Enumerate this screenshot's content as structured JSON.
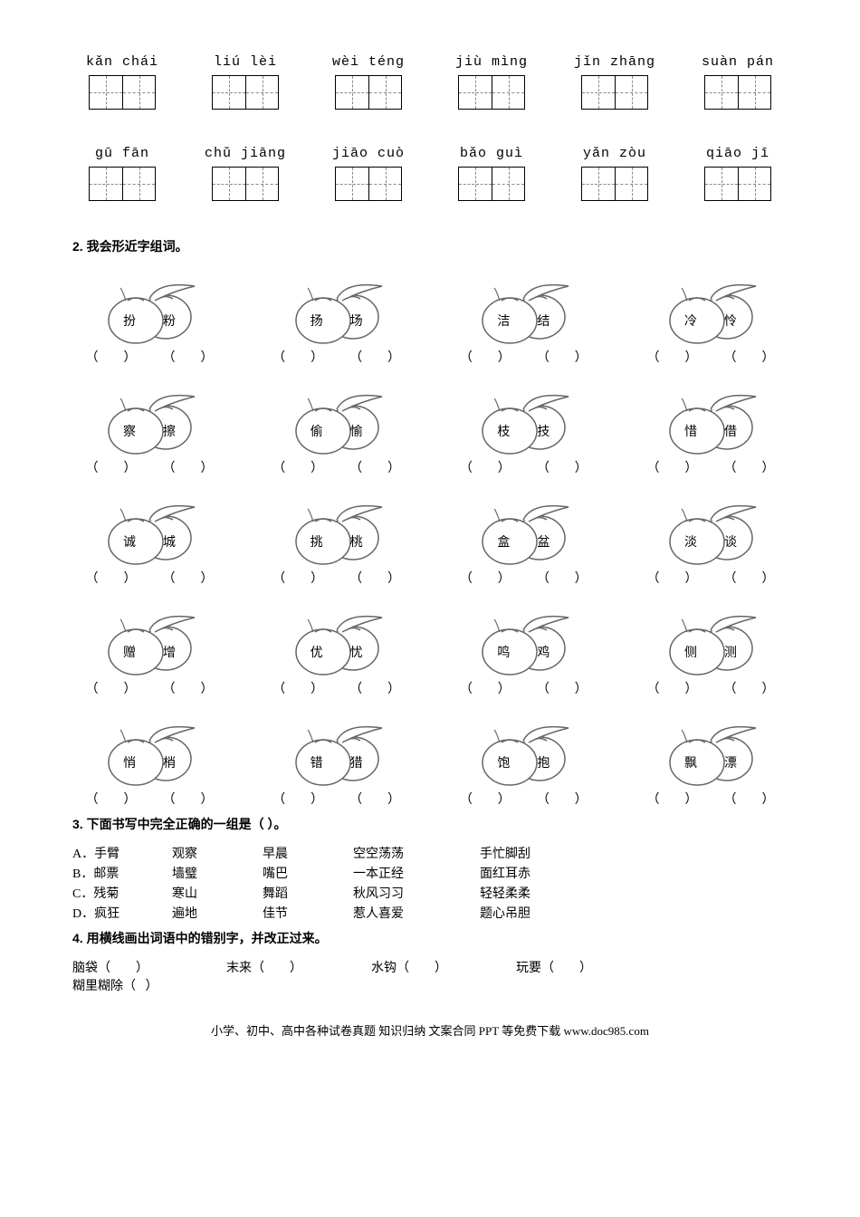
{
  "pinyin_rows": [
    [
      {
        "pinyin": "kǎn chái"
      },
      {
        "pinyin": "liú lèi"
      },
      {
        "pinyin": "wèi téng"
      },
      {
        "pinyin": "jiù  mìng"
      },
      {
        "pinyin": "jǐn zhāng"
      },
      {
        "pinyin": "suàn pán"
      }
    ],
    [
      {
        "pinyin": "gū fān"
      },
      {
        "pinyin": "chǔ jiāng"
      },
      {
        "pinyin": "jiāo cuò"
      },
      {
        "pinyin": "bǎo  guì"
      },
      {
        "pinyin": "yǎn zòu"
      },
      {
        "pinyin": "qiāo  jī"
      }
    ]
  ],
  "q2": {
    "heading": "2. 我会形近字组词。",
    "rows": [
      [
        [
          "扮",
          "粉"
        ],
        [
          "扬",
          "场"
        ],
        [
          "洁",
          "结"
        ],
        [
          "冷",
          "怜"
        ]
      ],
      [
        [
          "察",
          "擦"
        ],
        [
          "偷",
          "愉"
        ],
        [
          "枝",
          "技"
        ],
        [
          "惜",
          "借"
        ]
      ],
      [
        [
          "诚",
          "城"
        ],
        [
          "挑",
          "桃"
        ],
        [
          "盒",
          "盆"
        ],
        [
          "淡",
          "谈"
        ]
      ],
      [
        [
          "赠",
          "增"
        ],
        [
          "优",
          "忧"
        ],
        [
          "鸣",
          "鸡"
        ],
        [
          "侧",
          "测"
        ]
      ],
      [
        [
          "悄",
          "梢"
        ],
        [
          "错",
          "猎"
        ],
        [
          "饱",
          "抱"
        ],
        [
          "飘",
          "漂"
        ]
      ]
    ]
  },
  "q3": {
    "heading": "3. 下面书写中完全正确的一组是（     ）。",
    "options": [
      [
        "A．手臂",
        "观察",
        "早晨",
        "空空荡荡",
        "手忙脚刮"
      ],
      [
        "B．邮票",
        "墙璧",
        "嘴巴",
        "一本正经",
        "面红耳赤"
      ],
      [
        "C．残菊",
        "寒山",
        "舞蹈",
        "秋风习习",
        "轻轻柔柔"
      ],
      [
        "D．疯狂",
        "遍地",
        "佳节",
        "惹人喜爱",
        "题心吊胆"
      ]
    ]
  },
  "q4": {
    "heading": "4. 用横线画出词语中的错别字，并改正过来。",
    "items": [
      "脑袋（        ）",
      "末来（        ）",
      "水钩（        ）",
      "玩要（        ）",
      "糊里糊除（   ）"
    ]
  },
  "footer": "小学、初中、高中各种试卷真题 知识归纳 文案合同 PPT 等免费下载  www.doc985.com",
  "paren_text": "（        ）",
  "colors": {
    "line": "#666666"
  }
}
